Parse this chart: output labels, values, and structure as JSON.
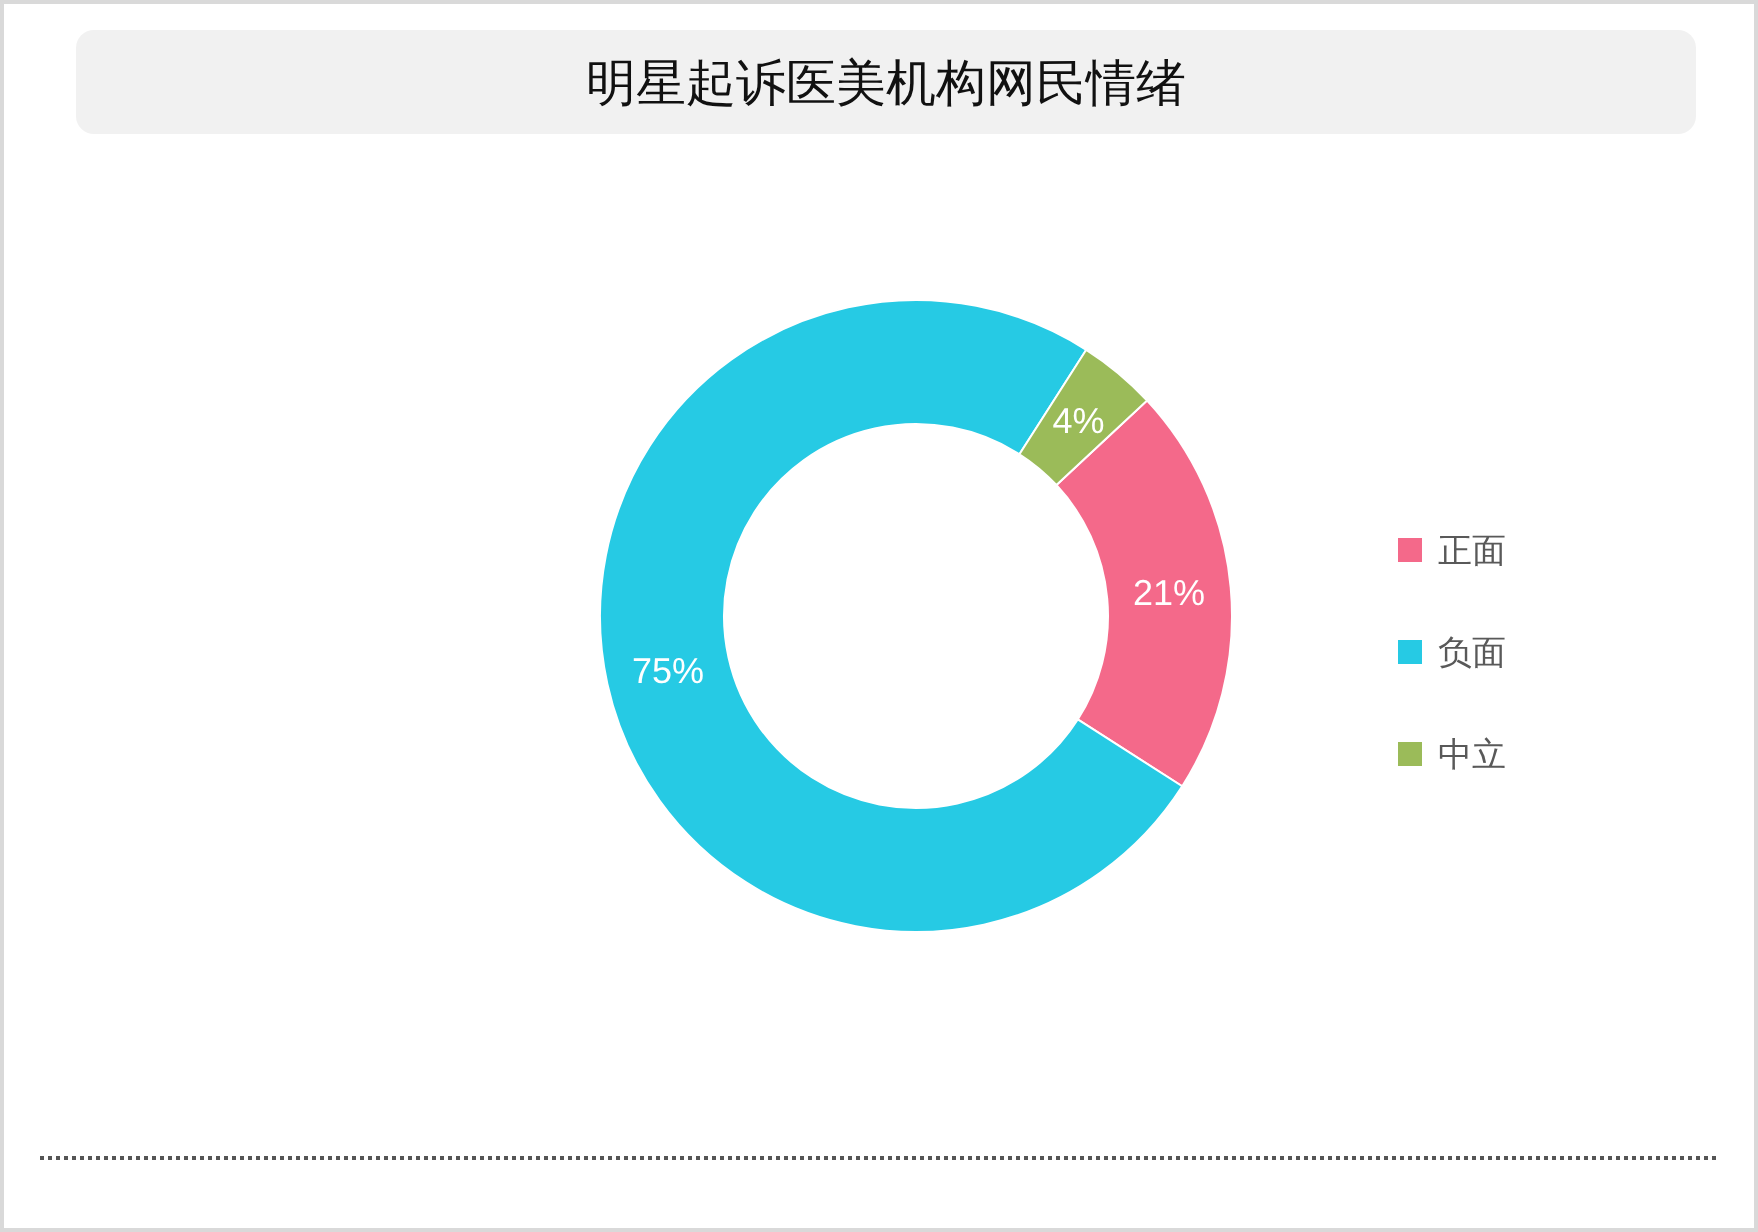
{
  "chart_data": {
    "type": "donut",
    "title": "明星起诉医美机构网民情绪",
    "categories": [
      "正面",
      "负面",
      "中立"
    ],
    "values": [
      21,
      75,
      4
    ],
    "colors": [
      "#f4698a",
      "#26cae4",
      "#9bbb59"
    ],
    "value_labels": [
      "21%",
      "75%",
      "4%"
    ],
    "legend": "right"
  }
}
